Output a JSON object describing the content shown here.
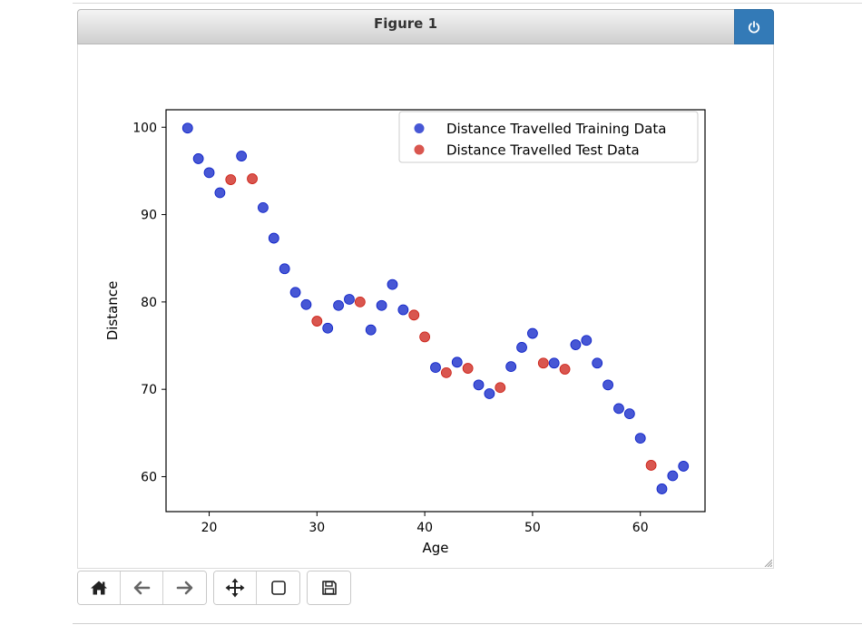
{
  "figure": {
    "title": "Figure 1"
  },
  "toolbar": {
    "groups": [
      [
        {
          "icon": "home-icon"
        },
        {
          "icon": "back-arrow-icon"
        },
        {
          "icon": "forward-arrow-icon"
        }
      ],
      [
        {
          "icon": "pan-icon"
        },
        {
          "icon": "zoom-rect-icon"
        }
      ],
      [
        {
          "icon": "save-icon"
        }
      ]
    ]
  },
  "colors": {
    "train": "#0a1fc7",
    "test": "#cc1e14",
    "header_button": "#337ab7"
  },
  "chart_data": {
    "type": "scatter",
    "title": "",
    "xlabel": "Age",
    "ylabel": "Distance",
    "xlim": [
      16,
      66
    ],
    "ylim": [
      56,
      102
    ],
    "xticks": [
      20,
      30,
      40,
      50,
      60
    ],
    "yticks": [
      60,
      70,
      80,
      90,
      100
    ],
    "grid": false,
    "legend": "top-right",
    "series": [
      {
        "name": "Distance Travelled Training Data",
        "color": "#0a1fc7",
        "x": [
          18,
          19,
          20,
          21,
          23,
          25,
          26,
          27,
          28,
          29,
          31,
          32,
          33,
          35,
          36,
          37,
          38,
          41,
          43,
          45,
          46,
          48,
          49,
          50,
          52,
          54,
          55,
          56,
          57,
          58,
          59,
          60,
          62,
          63,
          64
        ],
        "y": [
          99.9,
          96.4,
          94.8,
          92.5,
          96.7,
          90.8,
          87.3,
          83.8,
          81.1,
          79.7,
          77.0,
          79.6,
          80.3,
          76.8,
          79.6,
          82.0,
          79.1,
          72.5,
          73.1,
          70.5,
          69.5,
          72.6,
          74.8,
          76.4,
          73.0,
          75.1,
          75.6,
          73.0,
          70.5,
          67.8,
          67.2,
          64.4,
          58.6,
          60.1,
          61.2
        ]
      },
      {
        "name": "Distance Travelled Test Data",
        "color": "#cc1e14",
        "x": [
          22,
          24,
          30,
          34,
          39,
          40,
          42,
          44,
          47,
          51,
          53,
          61
        ],
        "y": [
          94.0,
          94.1,
          77.8,
          80.0,
          78.5,
          76.0,
          71.9,
          72.4,
          70.2,
          73.0,
          72.3,
          61.3
        ]
      }
    ]
  }
}
